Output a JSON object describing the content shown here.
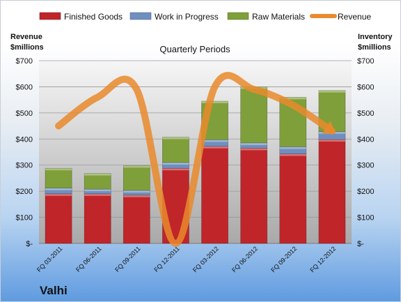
{
  "chart_data": {
    "type": "bar",
    "stacked": true,
    "title": "Quarterly Periods",
    "company": "Valhi",
    "left_axis_label": [
      "Revenue",
      "$millions"
    ],
    "right_axis_label": [
      "Inventory",
      "$millions"
    ],
    "categories": [
      "FQ 03-2011",
      "FQ 06-2011",
      "FQ 09-2011",
      "FQ 12-2011",
      "FQ 03-2012",
      "FQ 06-2012",
      "FQ 09-2012",
      "FQ 12-2012"
    ],
    "ylim": [
      0,
      700
    ],
    "yticks": [
      0,
      100,
      200,
      300,
      400,
      500,
      600,
      700
    ],
    "yticklabels": [
      "$-",
      "$100",
      "$200",
      "$300",
      "$400",
      "$500",
      "$600",
      "$700"
    ],
    "series": [
      {
        "name": "Finished Goods",
        "color": "#c0252a",
        "values": [
          190,
          190,
          185,
          288,
          372,
          365,
          343,
          398
        ]
      },
      {
        "name": "Work in Progress",
        "color": "#6f8fbf",
        "values": [
          22,
          18,
          18,
          22,
          25,
          20,
          27,
          30
        ]
      },
      {
        "name": "Raw Materials",
        "color": "#7f9f3a",
        "values": [
          76,
          60,
          95,
          97,
          148,
          215,
          190,
          158
        ]
      }
    ],
    "line_series": {
      "name": "Revenue",
      "color": "#e98a2c",
      "values": [
        450,
        560,
        590,
        0,
        600,
        590,
        530,
        430
      ]
    },
    "grid": true,
    "legend_position": "top"
  }
}
